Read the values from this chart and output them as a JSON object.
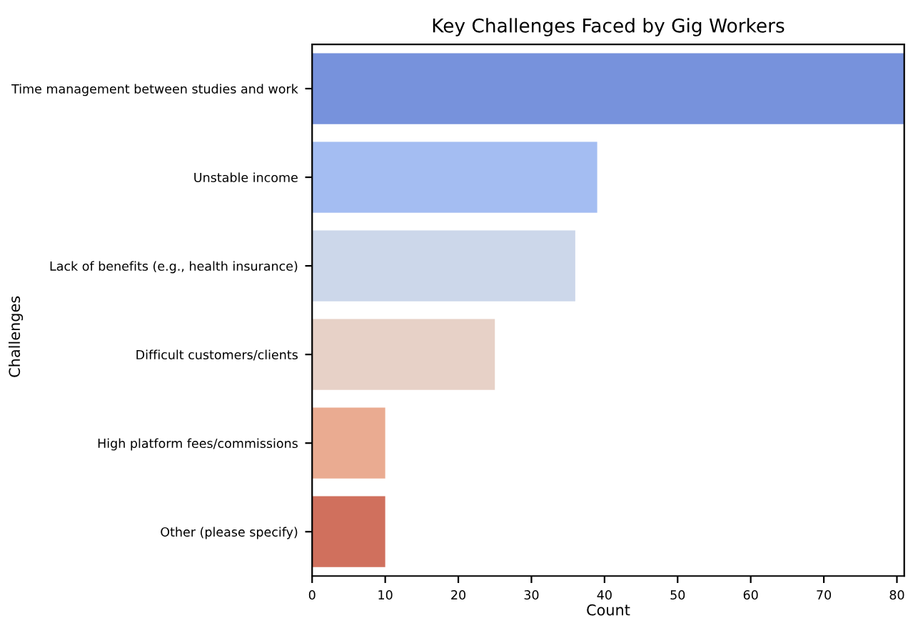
{
  "chart_data": {
    "type": "bar",
    "orientation": "horizontal",
    "title": "Key Challenges Faced by Gig Workers",
    "xlabel": "Count",
    "ylabel": "Challenges",
    "categories": [
      "Time management between studies and work",
      "Unstable income",
      "Lack of benefits (e.g., health insurance)",
      "Difficult customers/clients",
      "High platform fees/commissions",
      "Other (please specify)"
    ],
    "values": [
      81,
      39,
      36,
      25,
      10,
      10
    ],
    "colors": [
      "#7792dc",
      "#a4bdf2",
      "#ccd7ea",
      "#e7d1c7",
      "#eaab91",
      "#d0705d"
    ],
    "xlim": [
      0,
      81
    ],
    "xticks": [
      0,
      10,
      20,
      30,
      40,
      50,
      60,
      70,
      80
    ],
    "grid": false,
    "legend": false
  }
}
